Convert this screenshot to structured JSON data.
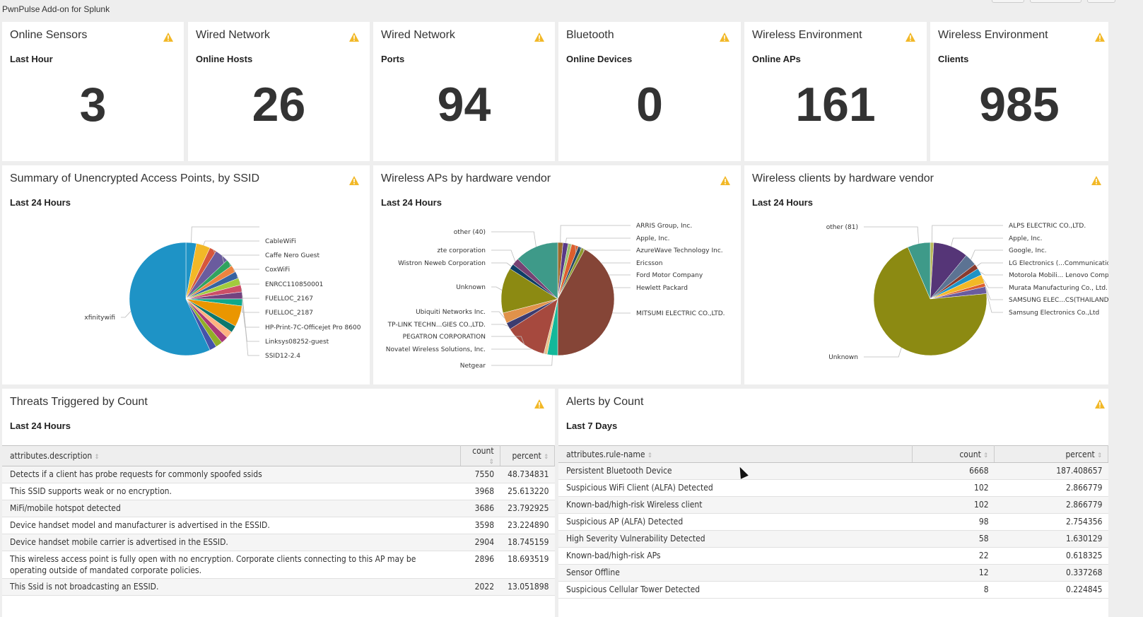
{
  "app": {
    "title": "PwnPulse Add-on for Splunk"
  },
  "colors": {
    "warning": "#f2b827",
    "text": "#333333"
  },
  "singles": [
    {
      "title": "Online Sensors",
      "subtitle": "Last Hour",
      "value": "3"
    },
    {
      "title": "Wired Network",
      "subtitle": "Online Hosts",
      "value": "26"
    },
    {
      "title": "Wired Network",
      "subtitle": "Ports",
      "value": "94"
    },
    {
      "title": "Bluetooth",
      "subtitle": "Online Devices",
      "value": "0"
    },
    {
      "title": "Wireless Environment",
      "subtitle": "Online APs",
      "value": "161"
    },
    {
      "title": "Wireless Environment",
      "subtitle": "Clients",
      "value": "985"
    }
  ],
  "chart_data": [
    {
      "type": "pie",
      "title": "Summary of Unencrypted Access Points, by SSID",
      "subtitle": "Last 24 Hours",
      "labels": [
        "",
        "CableWiFi",
        "Caffe Nero Guest",
        "CoxWiFi",
        "ENRCC110850001",
        "FUELLOC_2167",
        "FUELLOC_2187",
        "HP-Print-7C-Officejet Pro 8600",
        "Linksys08252-guest",
        "SSID12-2.4",
        "",
        "",
        "",
        "",
        "",
        "",
        "",
        "xfinitywifi"
      ],
      "values": [
        3,
        4,
        2,
        4,
        2,
        2,
        2,
        2,
        2,
        2,
        2,
        6,
        2,
        2,
        2,
        2,
        2,
        57
      ],
      "colors": [
        "#1e93c6",
        "#f2b827",
        "#d6563c",
        "#6a5c9e",
        "#31a35f",
        "#ed8440",
        "#3863a0",
        "#a2cc3e",
        "#cc5068",
        "#73427f",
        "#11a88b",
        "#ea9600",
        "#0e776d",
        "#ffb380",
        "#aa3977",
        "#91af27",
        "#4453aa",
        "#1e93c6"
      ]
    },
    {
      "type": "pie",
      "title": "Wireless APs by hardware vendor",
      "subtitle": "Last 24 Hours",
      "labels": [
        "ARRIS Group, Inc.",
        "Apple, Inc.",
        "AzureWave Technology Inc.",
        "Ericsson",
        "Ford Motor Company",
        "Hewlett Packard",
        "MITSUMI ELECTRIC CO.,LTD.",
        "Netgear",
        "Novatel Wireless Solutions, Inc.",
        "PEGATRON CORPORATION",
        "TP-LINK TECHN...GIES CO.,LTD.",
        "Ubiquiti Networks Inc.",
        "Unknown",
        "Wistron Neweb Corporation",
        "zte corporation",
        "other (40)"
      ],
      "values": [
        1.5,
        1.5,
        1,
        2,
        1,
        1,
        42,
        3,
        1,
        12,
        2,
        3,
        13,
        1.5,
        2,
        12.5
      ],
      "colors": [
        "#9c6b2e",
        "#5a3a87",
        "#9ec26f",
        "#dd5e2d",
        "#284a63",
        "#8e9a2e",
        "#854537",
        "#13b89a",
        "#e8c48c",
        "#a6493e",
        "#3c3c70",
        "#e0924a",
        "#8c8a12",
        "#0f3e66",
        "#774273",
        "#3e9a89"
      ]
    },
    {
      "type": "pie",
      "title": "Wireless clients by hardware vendor",
      "subtitle": "Last 24 Hours",
      "labels": [
        "ALPS ELECTRIC CO.,LTD.",
        "Apple, Inc.",
        "Google, Inc.",
        "LG Electronics (...Communications",
        "Motorola Mobili... Lenovo Company",
        "Murata Manufacturing Co., Ltd.",
        "SAMSUNG ELEC...CS(THAILAND)",
        "Samsung Electronics Co.,Ltd",
        "Unknown",
        "other (81)"
      ],
      "values": [
        1,
        10,
        3.5,
        1.5,
        2,
        2.5,
        1,
        2,
        70,
        6.5
      ],
      "colors": [
        "#b8b85a",
        "#553577",
        "#5c7393",
        "#8a3b2e",
        "#1e93c6",
        "#f2b827",
        "#dd5e2d",
        "#6a5c9e",
        "#8c8a12",
        "#3e9a89"
      ]
    }
  ],
  "threats": {
    "title": "Threats Triggered by Count",
    "subtitle": "Last 24 Hours",
    "columns": [
      "attributes.description",
      "count",
      "percent"
    ],
    "rows": [
      [
        "Detects if a client has probe requests for commonly spoofed ssids",
        "7550",
        "48.734831"
      ],
      [
        "This SSID supports weak or no encryption.",
        "3968",
        "25.613220"
      ],
      [
        "MiFi/mobile hotspot detected",
        "3686",
        "23.792925"
      ],
      [
        "Device handset model and manufacturer is advertised in the ESSID.",
        "3598",
        "23.224890"
      ],
      [
        "Device handset mobile carrier is advertised in the ESSID.",
        "2904",
        "18.745159"
      ],
      [
        "This wireless access point is fully open with no encryption. Corporate clients connecting to this AP may be operating outside of mandated corporate policies.",
        "2896",
        "18.693519"
      ],
      [
        "This Ssid is not broadcasting an ESSID.",
        "2022",
        "13.051898"
      ]
    ]
  },
  "alerts": {
    "title": "Alerts by Count",
    "subtitle": "Last 7 Days",
    "columns": [
      "attributes.rule-name",
      "count",
      "percent"
    ],
    "rows": [
      [
        "Persistent Bluetooth Device",
        "6668",
        "187.408657"
      ],
      [
        "Suspicious WiFi Client (ALFA) Detected",
        "102",
        "2.866779"
      ],
      [
        "Known-bad/high-risk Wireless client",
        "102",
        "2.866779"
      ],
      [
        "Suspicious AP (ALFA) Detected",
        "98",
        "2.754356"
      ],
      [
        "High Severity Vulnerability Detected",
        "58",
        "1.630129"
      ],
      [
        "Known-bad/high-risk APs",
        "22",
        "0.618325"
      ],
      [
        "Sensor Offline",
        "12",
        "0.337268"
      ],
      [
        "Suspicious Cellular Tower Detected",
        "8",
        "0.224845"
      ]
    ]
  }
}
